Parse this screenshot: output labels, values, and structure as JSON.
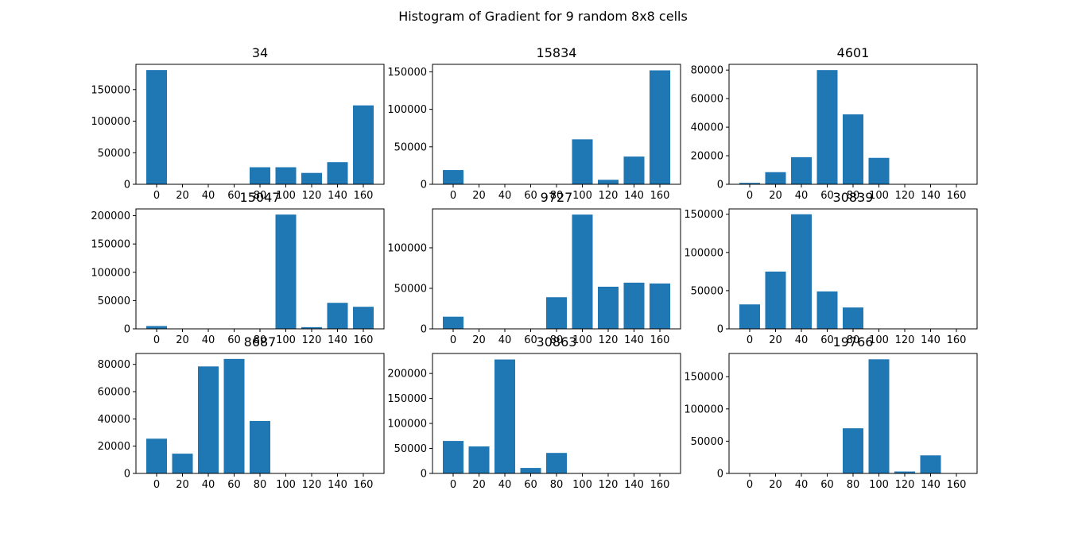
{
  "figure": {
    "title": "Histogram of Gradient for 9 random 8x8 cells",
    "bar_color": "#1f77b4"
  },
  "chart_data": [
    {
      "type": "bar",
      "title": "34",
      "categories": [
        "0",
        "20",
        "40",
        "60",
        "80",
        "100",
        "120",
        "140",
        "160"
      ],
      "values": [
        181000,
        0,
        0,
        0,
        27000,
        27000,
        18000,
        35000,
        125000
      ],
      "ylim": [
        0,
        190000
      ],
      "yticks": [
        0,
        50000,
        100000,
        150000
      ],
      "ytick_labels": [
        "0",
        "50000",
        "100000",
        "150000"
      ]
    },
    {
      "type": "bar",
      "title": "15834",
      "categories": [
        "0",
        "20",
        "40",
        "60",
        "80",
        "100",
        "120",
        "140",
        "160"
      ],
      "values": [
        19000,
        0,
        0,
        0,
        0,
        60000,
        6000,
        37000,
        152000
      ],
      "ylim": [
        0,
        160000
      ],
      "yticks": [
        0,
        50000,
        100000,
        150000
      ],
      "ytick_labels": [
        "0",
        "50000",
        "100000",
        "150000"
      ]
    },
    {
      "type": "bar",
      "title": "4601",
      "categories": [
        "0",
        "20",
        "40",
        "60",
        "80",
        "100",
        "120",
        "140",
        "160"
      ],
      "values": [
        1000,
        8500,
        19000,
        80000,
        49000,
        18500,
        0,
        0,
        0
      ],
      "ylim": [
        0,
        84000
      ],
      "yticks": [
        0,
        20000,
        40000,
        60000,
        80000
      ],
      "ytick_labels": [
        "0",
        "20000",
        "40000",
        "60000",
        "80000"
      ]
    },
    {
      "type": "bar",
      "title": "15047",
      "categories": [
        "0",
        "20",
        "40",
        "60",
        "80",
        "100",
        "120",
        "140",
        "160"
      ],
      "values": [
        5000,
        0,
        0,
        0,
        0,
        202000,
        3000,
        46000,
        39000
      ],
      "ylim": [
        0,
        212000
      ],
      "yticks": [
        0,
        50000,
        100000,
        150000,
        200000
      ],
      "ytick_labels": [
        "0",
        "50000",
        "100000",
        "150000",
        "200000"
      ]
    },
    {
      "type": "bar",
      "title": "9727",
      "categories": [
        "0",
        "20",
        "40",
        "60",
        "80",
        "100",
        "120",
        "140",
        "160"
      ],
      "values": [
        15000,
        0,
        0,
        0,
        39000,
        141000,
        52000,
        57000,
        56000
      ],
      "ylim": [
        0,
        148000
      ],
      "yticks": [
        0,
        50000,
        100000
      ],
      "ytick_labels": [
        "0",
        "50000",
        "100000"
      ]
    },
    {
      "type": "bar",
      "title": "30839",
      "categories": [
        "0",
        "20",
        "40",
        "60",
        "80",
        "100",
        "120",
        "140",
        "160"
      ],
      "values": [
        32000,
        75000,
        150000,
        49000,
        28000,
        0,
        0,
        0,
        0
      ],
      "ylim": [
        0,
        157000
      ],
      "yticks": [
        0,
        50000,
        100000,
        150000
      ],
      "ytick_labels": [
        "0",
        "50000",
        "100000",
        "150000"
      ]
    },
    {
      "type": "bar",
      "title": "8687",
      "categories": [
        "0",
        "20",
        "40",
        "60",
        "80",
        "100",
        "120",
        "140",
        "160"
      ],
      "values": [
        25500,
        14500,
        78500,
        84000,
        38500,
        0,
        0,
        0,
        0
      ],
      "ylim": [
        0,
        88000
      ],
      "yticks": [
        0,
        20000,
        40000,
        60000,
        80000
      ],
      "ytick_labels": [
        "0",
        "20000",
        "40000",
        "60000",
        "80000"
      ]
    },
    {
      "type": "bar",
      "title": "30863",
      "categories": [
        "0",
        "20",
        "40",
        "60",
        "80",
        "100",
        "120",
        "140",
        "160"
      ],
      "values": [
        65000,
        54000,
        228000,
        11000,
        41000,
        0,
        0,
        0,
        0
      ],
      "ylim": [
        0,
        240000
      ],
      "yticks": [
        0,
        50000,
        100000,
        150000,
        200000
      ],
      "ytick_labels": [
        "0",
        "50000",
        "100000",
        "150000",
        "200000"
      ]
    },
    {
      "type": "bar",
      "title": "19766",
      "categories": [
        "0",
        "20",
        "40",
        "60",
        "80",
        "100",
        "120",
        "140",
        "160"
      ],
      "values": [
        0,
        0,
        0,
        0,
        70000,
        177000,
        3000,
        28000,
        0
      ],
      "ylim": [
        0,
        186000
      ],
      "yticks": [
        0,
        50000,
        100000,
        150000
      ],
      "ytick_labels": [
        "0",
        "50000",
        "100000",
        "150000"
      ]
    }
  ]
}
